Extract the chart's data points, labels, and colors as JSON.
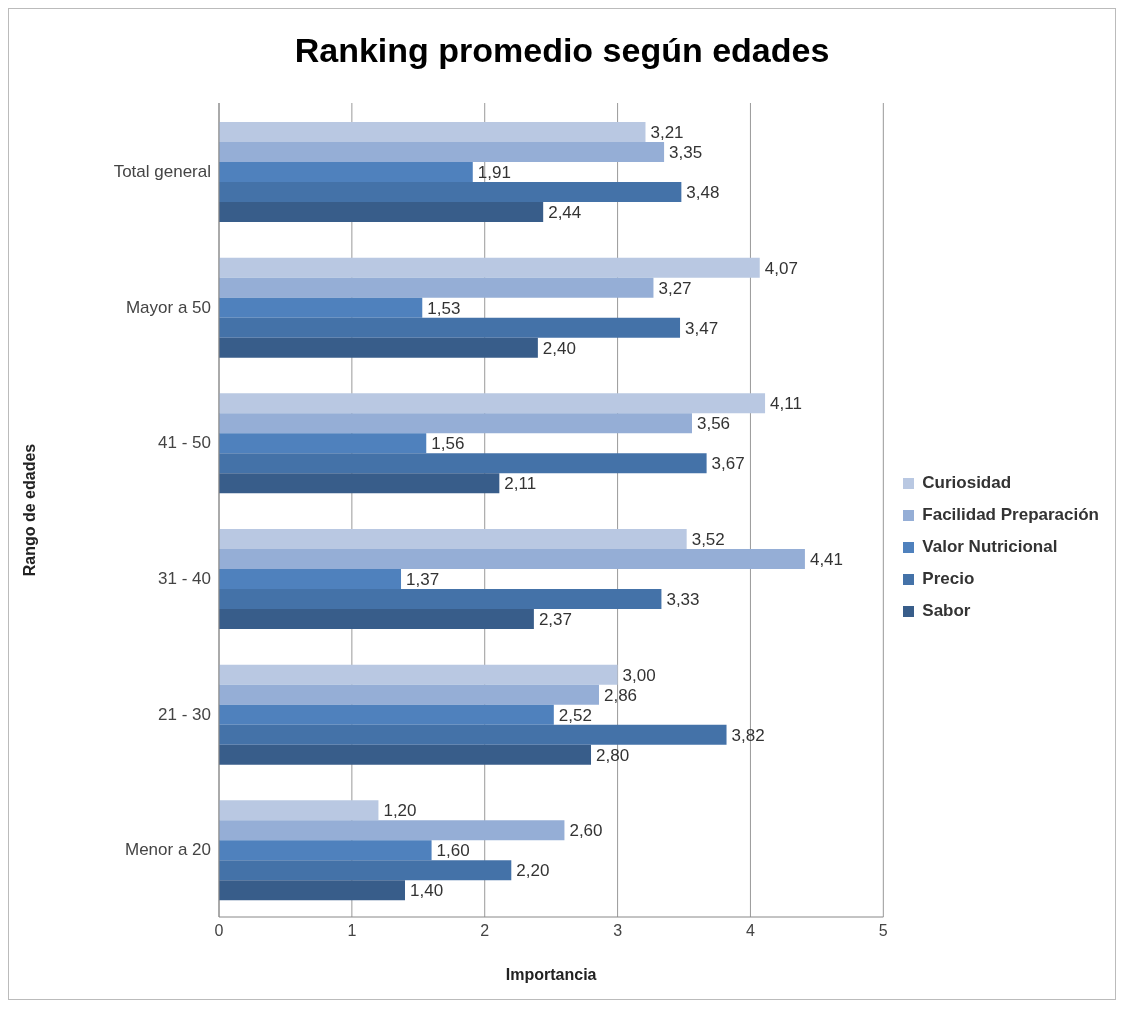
{
  "chart_data": {
    "type": "bar",
    "orientation": "horizontal",
    "title": "Ranking promedio según edades",
    "xlabel": "Importancia",
    "ylabel": "Rango de edades",
    "categories": [
      "Total general",
      "Mayor a 50",
      "41 - 50",
      "31 - 40",
      "21 - 30",
      "Menor a 20"
    ],
    "series": [
      {
        "name": "Curiosidad",
        "color": "#b9c8e2",
        "values": [
          3.21,
          4.07,
          4.11,
          3.52,
          3.0,
          1.2
        ],
        "value_labels": [
          "3,21",
          "4,07",
          "4,11",
          "3,52",
          "3,00",
          "1,20"
        ]
      },
      {
        "name": "Facilidad Preparación",
        "color": "#95aed6",
        "values": [
          3.35,
          3.27,
          3.56,
          4.41,
          2.86,
          2.6
        ],
        "value_labels": [
          "3,35",
          "3,27",
          "3,56",
          "4,41",
          "2,86",
          "2,60"
        ]
      },
      {
        "name": "Valor Nutricional",
        "color": "#4f81bd",
        "values": [
          1.91,
          1.53,
          1.56,
          1.37,
          2.52,
          1.6
        ],
        "value_labels": [
          "1,91",
          "1,53",
          "1,56",
          "1,37",
          "2,52",
          "1,60"
        ]
      },
      {
        "name": "Precio",
        "color": "#4472a8",
        "values": [
          3.48,
          3.47,
          3.67,
          3.33,
          3.82,
          2.2
        ],
        "value_labels": [
          "3,48",
          "3,47",
          "3,67",
          "3,33",
          "3,82",
          "2,20"
        ]
      },
      {
        "name": "Sabor",
        "color": "#385d8a",
        "values": [
          2.44,
          2.4,
          2.11,
          2.37,
          2.8,
          1.4
        ],
        "value_labels": [
          "2,44",
          "2,40",
          "2,11",
          "2,37",
          "2,80",
          "1,40"
        ]
      }
    ],
    "xlim": [
      0,
      5
    ],
    "xticks": [
      0,
      1,
      2,
      3,
      4,
      5
    ],
    "grid": "x",
    "legend": "right"
  }
}
